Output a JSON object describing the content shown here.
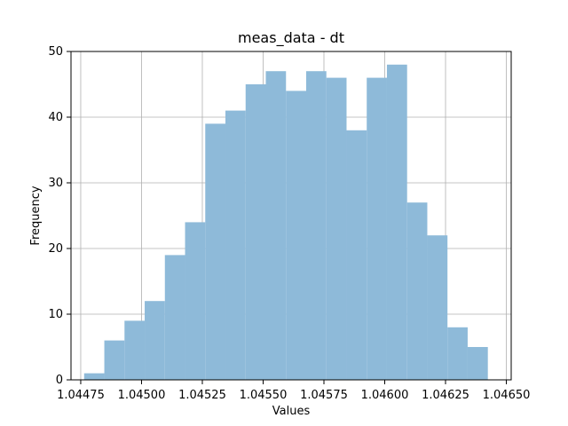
{
  "chart_data": {
    "type": "bar",
    "title": "meas_data - dt",
    "xlabel": "Values",
    "ylabel": "Frequency",
    "xlim": [
      1.04471,
      1.04652
    ],
    "ylim": [
      0,
      50
    ],
    "grid": true,
    "bar_color": "#8ebad9",
    "x_ticks": [
      1.04475,
      1.045,
      1.04525,
      1.0455,
      1.04575,
      1.046,
      1.04625,
      1.0465
    ],
    "x_tick_labels": [
      "1.04475",
      "1.04500",
      "1.04525",
      "1.04550",
      "1.04575",
      "1.04600",
      "1.04625",
      "1.04650"
    ],
    "y_ticks": [
      0,
      10,
      20,
      30,
      40,
      50
    ],
    "y_tick_labels": [
      "0",
      "10",
      "20",
      "30",
      "40",
      "50"
    ],
    "bin_edges": [
      1.044764,
      1.044847,
      1.04493,
      1.045013,
      1.045096,
      1.045179,
      1.045262,
      1.045345,
      1.045428,
      1.045511,
      1.045594,
      1.045677,
      1.04576,
      1.045843,
      1.045926,
      1.046009,
      1.046092,
      1.046175,
      1.046258,
      1.046341,
      1.046424
    ],
    "values": [
      1,
      6,
      9,
      12,
      19,
      24,
      39,
      41,
      45,
      47,
      44,
      47,
      46,
      38,
      46,
      48,
      27,
      22,
      8,
      5
    ]
  }
}
